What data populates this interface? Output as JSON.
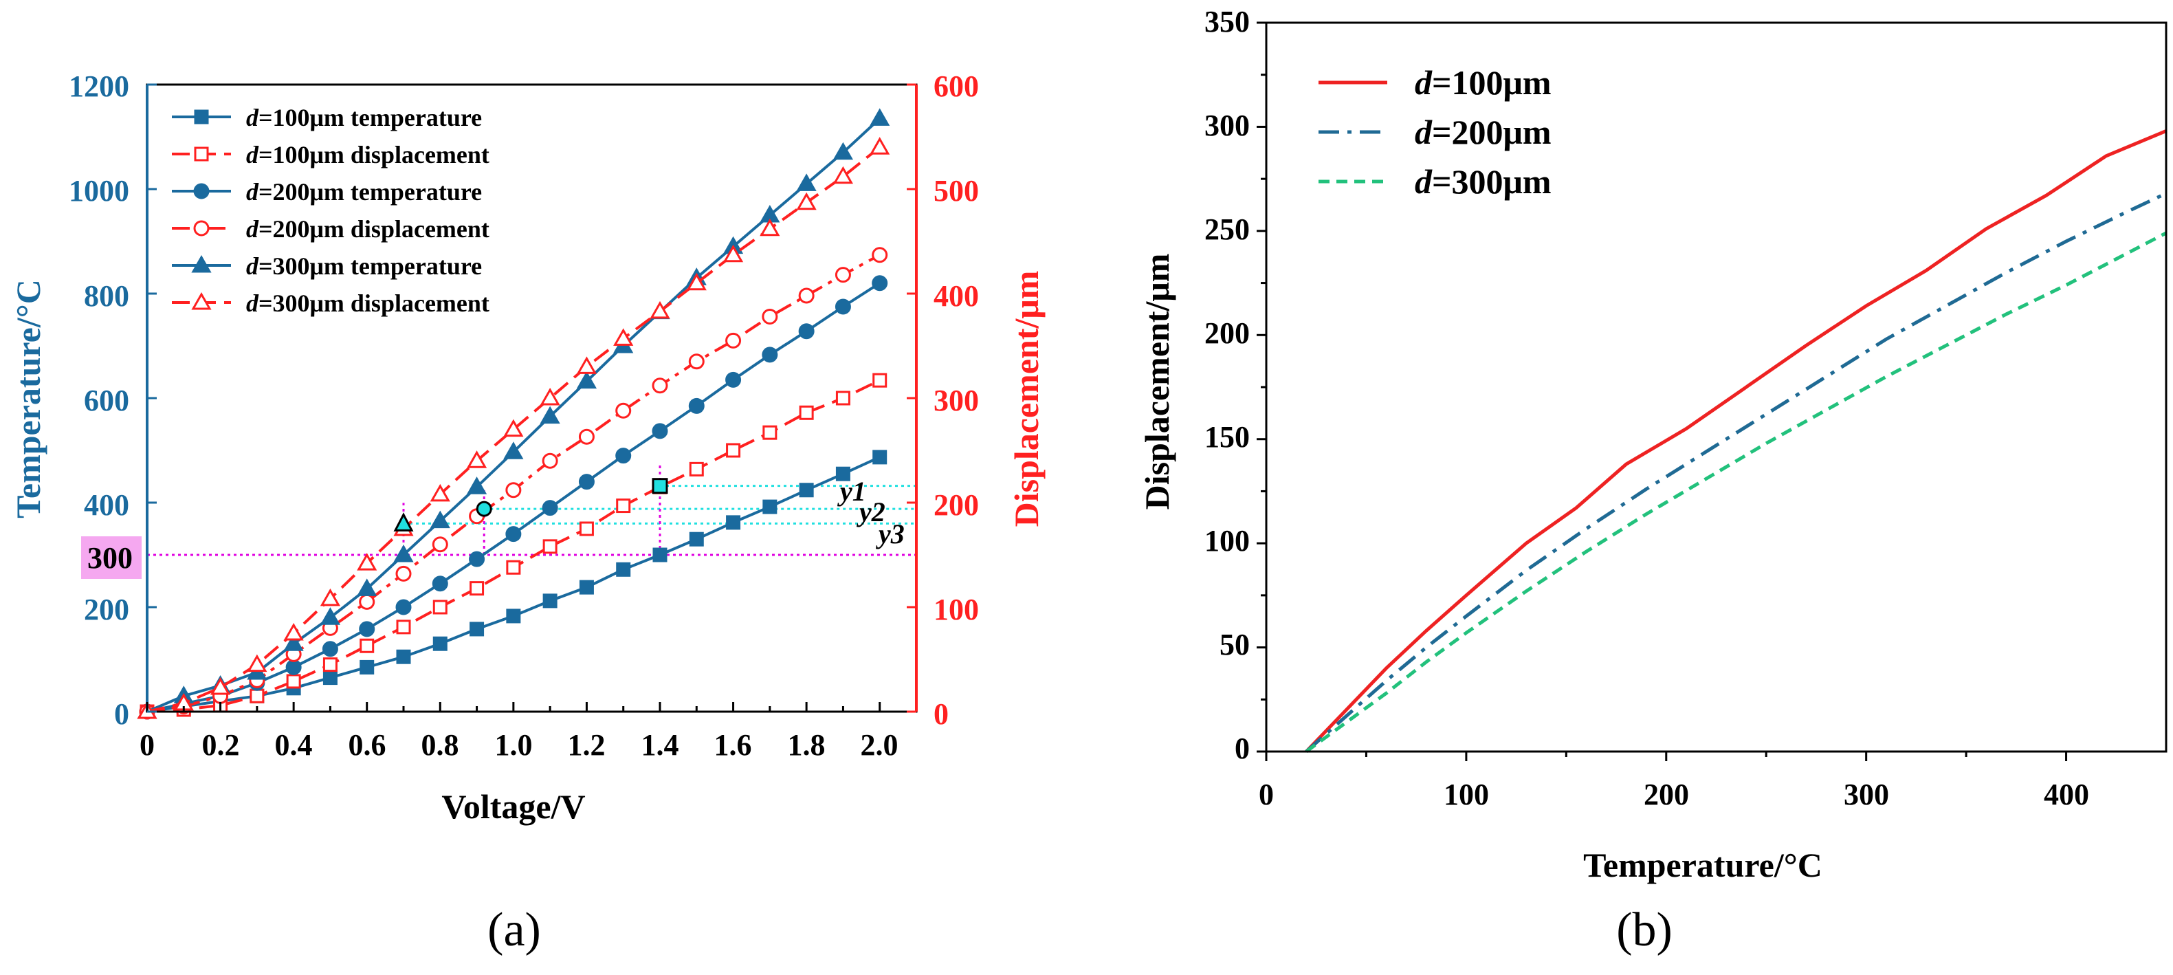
{
  "colors": {
    "temperature_blue": "#1a6a9e",
    "displacement_red": "#ff2020",
    "guide_magenta": "#e000e0",
    "guide_cyan": "#20e0e0",
    "highlight_pink": "#f5a8f0",
    "b_red": "#ee2222",
    "b_blue": "#1f6a94",
    "b_green": "#22c17c"
  },
  "chart_data": [
    {
      "type": "line",
      "panel_caption": "(a)",
      "xlabel": "Voltage/V",
      "ylabel_left": "Temperature/°C",
      "ylabel_right": "Displacement/μm",
      "xlim": [
        0,
        2.1
      ],
      "ylim_left": [
        0,
        1200
      ],
      "ylim_right": [
        0,
        600
      ],
      "x_ticks": [
        "0",
        "0.2",
        "0.4",
        "0.6",
        "0.8",
        "1.0",
        "1.2",
        "1.4",
        "1.6",
        "1.8",
        "2.0"
      ],
      "y_left_ticks": [
        "0",
        "200",
        "400",
        "600",
        "800",
        "1000",
        "1200"
      ],
      "y_right_ticks": [
        "0",
        "100",
        "200",
        "300",
        "400",
        "500",
        "600"
      ],
      "legend_prefix": "d",
      "series": [
        {
          "id": "t100",
          "name": "=100μm temperature",
          "axis": "left",
          "marker": "square-filled",
          "style": "solid",
          "x": [
            0,
            0.1,
            0.2,
            0.3,
            0.4,
            0.5,
            0.6,
            0.7,
            0.8,
            0.9,
            1.0,
            1.1,
            1.2,
            1.3,
            1.4,
            1.5,
            1.6,
            1.7,
            1.8,
            1.9,
            2.0
          ],
          "values": [
            0,
            10,
            20,
            30,
            45,
            65,
            85,
            105,
            130,
            158,
            183,
            212,
            238,
            272,
            300,
            330,
            362,
            392,
            424,
            455,
            487
          ]
        },
        {
          "id": "d100",
          "name": "=100μm displacement",
          "axis": "right",
          "marker": "square-open",
          "style": "dash",
          "x": [
            0,
            0.1,
            0.2,
            0.3,
            0.4,
            0.5,
            0.6,
            0.7,
            0.8,
            0.9,
            1.0,
            1.1,
            1.2,
            1.3,
            1.4,
            1.5,
            1.6,
            1.7,
            1.8,
            1.9,
            2.0
          ],
          "values": [
            0,
            2,
            6,
            15,
            29,
            45,
            63,
            81,
            100,
            118,
            138,
            158,
            175,
            197,
            215,
            232,
            250,
            267,
            286,
            300,
            317
          ]
        },
        {
          "id": "t200",
          "name": "=200μm temperature",
          "axis": "left",
          "marker": "circle-filled",
          "style": "solid",
          "x": [
            0,
            0.1,
            0.2,
            0.3,
            0.4,
            0.5,
            0.6,
            0.7,
            0.8,
            0.9,
            1.0,
            1.1,
            1.2,
            1.3,
            1.4,
            1.5,
            1.6,
            1.7,
            1.8,
            1.9,
            2.0
          ],
          "values": [
            0,
            15,
            30,
            55,
            85,
            120,
            158,
            200,
            245,
            292,
            340,
            390,
            440,
            490,
            537,
            585,
            635,
            683,
            728,
            775,
            820
          ]
        },
        {
          "id": "d200",
          "name": "=200μm displacement",
          "axis": "right",
          "marker": "circle-open",
          "style": "dashdot",
          "x": [
            0,
            0.1,
            0.2,
            0.3,
            0.4,
            0.5,
            0.6,
            0.7,
            0.8,
            0.9,
            1.0,
            1.1,
            1.2,
            1.3,
            1.4,
            1.5,
            1.6,
            1.7,
            1.8,
            1.9,
            2.0
          ],
          "values": [
            0,
            5,
            15,
            30,
            55,
            80,
            105,
            132,
            160,
            187,
            212,
            240,
            263,
            288,
            312,
            335,
            355,
            378,
            398,
            418,
            437
          ]
        },
        {
          "id": "t300",
          "name": "=300μm temperature",
          "axis": "left",
          "marker": "triangle-filled",
          "style": "solid",
          "x": [
            0,
            0.1,
            0.2,
            0.3,
            0.4,
            0.5,
            0.6,
            0.7,
            0.8,
            0.9,
            1.0,
            1.1,
            1.2,
            1.3,
            1.4,
            1.5,
            1.6,
            1.7,
            1.8,
            1.9,
            2.0
          ],
          "values": [
            0,
            30,
            50,
            75,
            130,
            180,
            235,
            300,
            365,
            430,
            497,
            565,
            632,
            700,
            765,
            830,
            890,
            950,
            1010,
            1070,
            1135
          ]
        },
        {
          "id": "d300",
          "name": "=300μm displacement",
          "axis": "right",
          "marker": "triangle-open",
          "style": "dash",
          "x": [
            0,
            0.1,
            0.2,
            0.3,
            0.4,
            0.5,
            0.6,
            0.7,
            0.8,
            0.9,
            1.0,
            1.1,
            1.2,
            1.3,
            1.4,
            1.5,
            1.6,
            1.7,
            1.8,
            1.9,
            2.0
          ],
          "values": [
            0,
            8,
            23,
            45,
            75,
            108,
            142,
            175,
            208,
            240,
            270,
            300,
            330,
            357,
            383,
            410,
            437,
            462,
            487,
            512,
            540
          ]
        }
      ],
      "annotations": {
        "hline_label": "300",
        "hline_value": 300,
        "cursor_points": [
          {
            "id": "tri",
            "x": 0.7,
            "value": 360,
            "marker": "triangle"
          },
          {
            "id": "circ",
            "x": 0.92,
            "value": 388,
            "marker": "circle"
          },
          {
            "id": "sq",
            "x": 1.4,
            "value": 432,
            "marker": "square"
          }
        ],
        "y_labels": [
          {
            "text": "y1",
            "value": 432
          },
          {
            "text": "y2",
            "value": 388
          },
          {
            "text": "y3",
            "value": 356
          }
        ]
      }
    },
    {
      "type": "line",
      "panel_caption": "(b)",
      "xlabel": "Temperature/°C",
      "ylabel": "Displacement/μm",
      "xlim": [
        0,
        450
      ],
      "ylim": [
        0,
        350
      ],
      "x_ticks": [
        "0",
        "100",
        "200",
        "300",
        "400"
      ],
      "y_ticks": [
        "0",
        "50",
        "100",
        "150",
        "200",
        "250",
        "300",
        "350"
      ],
      "legend_prefix": "d",
      "series": [
        {
          "id": "b100",
          "name": "=100μm",
          "style": "solid",
          "x": [
            20,
            40,
            60,
            80,
            100,
            130,
            155,
            180,
            210,
            240,
            270,
            300,
            330,
            360,
            390,
            420,
            450
          ],
          "values": [
            0,
            20,
            40,
            58,
            75,
            100,
            117,
            138,
            155,
            175,
            195,
            214,
            231,
            251,
            267,
            286,
            298
          ]
        },
        {
          "id": "b200",
          "name": "=200μm",
          "style": "dashdot",
          "x": [
            20,
            40,
            60,
            80,
            100,
            130,
            160,
            190,
            220,
            250,
            280,
            310,
            340,
            370,
            400,
            430,
            450
          ],
          "values": [
            0,
            17,
            34,
            50,
            65,
            87,
            107,
            126,
            144,
            162,
            180,
            198,
            214,
            230,
            245,
            259,
            268
          ]
        },
        {
          "id": "b300",
          "name": "=300μm",
          "style": "dash",
          "x": [
            20,
            40,
            60,
            80,
            100,
            130,
            160,
            190,
            220,
            250,
            280,
            310,
            340,
            370,
            400,
            430,
            450
          ],
          "values": [
            0,
            14,
            28,
            43,
            57,
            77,
            96,
            114,
            131,
            148,
            164,
            180,
            195,
            210,
            224,
            239,
            249
          ]
        }
      ]
    }
  ]
}
